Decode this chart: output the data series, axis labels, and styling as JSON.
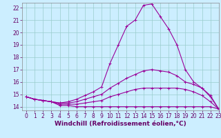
{
  "xlabel": "Windchill (Refroidissement éolien,°C)",
  "bg_color": "#cceeff",
  "grid_color": "#99cccc",
  "line_color": "#990099",
  "x": [
    0,
    1,
    2,
    3,
    4,
    5,
    6,
    7,
    8,
    9,
    10,
    11,
    12,
    13,
    14,
    15,
    16,
    17,
    18,
    19,
    20,
    21,
    22,
    23
  ],
  "lines": [
    [
      14.8,
      14.6,
      14.5,
      14.4,
      14.1,
      14.1,
      14.0,
      14.0,
      14.0,
      14.0,
      14.0,
      14.0,
      14.0,
      14.0,
      14.0,
      14.0,
      14.0,
      14.0,
      14.0,
      14.0,
      14.0,
      14.0,
      14.0,
      13.8
    ],
    [
      14.8,
      14.6,
      14.5,
      14.4,
      14.2,
      14.2,
      14.2,
      14.3,
      14.4,
      14.5,
      14.8,
      15.0,
      15.2,
      15.4,
      15.5,
      15.5,
      15.5,
      15.5,
      15.5,
      15.4,
      15.2,
      14.9,
      14.4,
      13.8
    ],
    [
      14.8,
      14.6,
      14.5,
      14.4,
      14.3,
      14.3,
      14.4,
      14.6,
      14.8,
      15.0,
      15.5,
      15.9,
      16.3,
      16.6,
      16.9,
      17.0,
      16.9,
      16.8,
      16.5,
      16.0,
      15.8,
      15.5,
      14.8,
      13.8
    ],
    [
      14.8,
      14.6,
      14.5,
      14.4,
      14.3,
      14.4,
      14.6,
      14.9,
      15.2,
      15.6,
      17.5,
      19.0,
      20.5,
      21.0,
      22.2,
      22.3,
      21.3,
      20.3,
      19.0,
      17.0,
      16.0,
      15.5,
      14.9,
      13.8
    ]
  ],
  "ylim": [
    13.7,
    22.4
  ],
  "xlim": [
    -0.5,
    23
  ],
  "yticks": [
    14,
    15,
    16,
    17,
    18,
    19,
    20,
    21,
    22
  ],
  "xticks": [
    0,
    1,
    2,
    3,
    4,
    5,
    6,
    7,
    8,
    9,
    10,
    11,
    12,
    13,
    14,
    15,
    16,
    17,
    18,
    19,
    20,
    21,
    22,
    23
  ],
  "tick_fontsize": 5.5,
  "xlabel_fontsize": 6.5,
  "marker": "+",
  "markersize": 3,
  "linewidth": 0.8
}
